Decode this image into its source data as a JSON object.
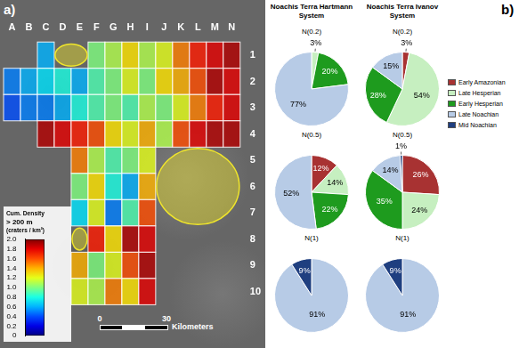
{
  "chart_data": [
    {
      "type": "heatmap",
      "panel": "a)",
      "x": [
        "A",
        "B",
        "C",
        "D",
        "E",
        "F",
        "G",
        "H",
        "I",
        "J",
        "K",
        "L",
        "M",
        "N"
      ],
      "y": [
        1,
        2,
        3,
        4,
        5,
        6,
        7,
        8,
        9,
        10
      ],
      "values": [
        [
          null,
          null,
          0.6,
          null,
          null,
          1.0,
          1.1,
          1.3,
          1.1,
          1.2,
          1.5,
          1.7,
          1.8,
          1.9
        ],
        [
          0.5,
          0.6,
          0.7,
          0.8,
          0.6,
          0.9,
          1.0,
          1.2,
          1.0,
          1.3,
          1.4,
          1.6,
          1.9,
          1.8
        ],
        [
          0.4,
          0.5,
          0.5,
          0.6,
          0.8,
          0.9,
          1.0,
          0.9,
          1.1,
          1.0,
          1.2,
          1.5,
          1.7,
          1.8
        ],
        [
          null,
          null,
          1.9,
          1.8,
          1.7,
          1.6,
          1.3,
          1.2,
          1.4,
          1.1,
          1.6,
          1.8,
          1.9,
          1.9
        ],
        [
          null,
          null,
          null,
          null,
          1.5,
          1.1,
          0.9,
          1.0,
          1.2,
          null,
          null,
          null,
          null,
          null
        ],
        [
          null,
          null,
          null,
          null,
          1.0,
          1.3,
          0.8,
          0.6,
          1.4,
          null,
          null,
          null,
          null,
          null
        ],
        [
          null,
          null,
          null,
          null,
          0.7,
          1.2,
          0.5,
          0.9,
          1.6,
          null,
          null,
          null,
          null,
          null
        ],
        [
          null,
          null,
          null,
          null,
          null,
          1.7,
          1.3,
          1.9,
          1.8,
          null,
          null,
          null,
          null,
          null
        ],
        [
          null,
          null,
          null,
          null,
          1.4,
          1.0,
          1.2,
          1.6,
          1.9,
          null,
          null,
          null,
          null,
          null
        ],
        [
          null,
          null,
          null,
          null,
          1.2,
          1.1,
          1.5,
          1.3,
          1.8,
          null,
          null,
          null,
          null,
          null
        ]
      ],
      "colorbar": {
        "title": [
          "Cum. Density",
          "> 200 m",
          "(craters / km²)"
        ],
        "range": [
          0,
          2
        ],
        "ticks": [
          0,
          0.2,
          0.4,
          0.6,
          0.8,
          {
            "value": 1,
            "label": "1.0"
          },
          1.2,
          1.4,
          1.6,
          1.8,
          {
            "value": 2,
            "label": "2.0"
          }
        ]
      },
      "scale_bar": {
        "ticks": [
          0,
          30
        ],
        "label": "Kilometers"
      }
    },
    {
      "type": "pie",
      "panel": "b)",
      "legend": "right",
      "data_labels": true,
      "series": [
        {
          "name": "Early Amazonian",
          "color": "#a83232"
        },
        {
          "name": "Late Hesperian",
          "color": "#c6efc0"
        },
        {
          "name": "Early Hesperian",
          "color": "#1e9b1e"
        },
        {
          "name": "Late Noachian",
          "color": "#b7cbe6"
        },
        {
          "name": "Mid Noachian",
          "color": "#1f3f80"
        }
      ],
      "columns": [
        {
          "title": "Noachis Terra Hartmann System",
          "pies": [
            {
              "title": "N(0.2)",
              "values": [
                null,
                3,
                20,
                77,
                null
              ],
              "value_labels": [
                null,
                "3%",
                "20%",
                "77%",
                null
              ]
            },
            {
              "title": "N(0.5)",
              "values": [
                12,
                14,
                22,
                52,
                null
              ],
              "value_labels": [
                "12%",
                "14%",
                "22%",
                "52%",
                null
              ]
            },
            {
              "title": "N(1)",
              "values": [
                null,
                null,
                null,
                91,
                9
              ],
              "value_labels": [
                null,
                null,
                null,
                "91%",
                "9%"
              ]
            }
          ]
        },
        {
          "title": "Noachis Terra Ivanov System",
          "pies": [
            {
              "title": "N(0.2)",
              "values": [
                3,
                54,
                28,
                15,
                null
              ],
              "value_labels": [
                "3%",
                "54%",
                "28%",
                "15%",
                null
              ]
            },
            {
              "title": "N(0.5)",
              "values": [
                26,
                24,
                35,
                14,
                1
              ],
              "value_labels": [
                "26%",
                "24%",
                "35%",
                "14%",
                "1%"
              ]
            },
            {
              "title": "N(1)",
              "values": [
                null,
                null,
                null,
                91,
                9
              ],
              "value_labels": [
                null,
                null,
                null,
                "91%",
                "9%"
              ]
            }
          ]
        }
      ]
    }
  ]
}
